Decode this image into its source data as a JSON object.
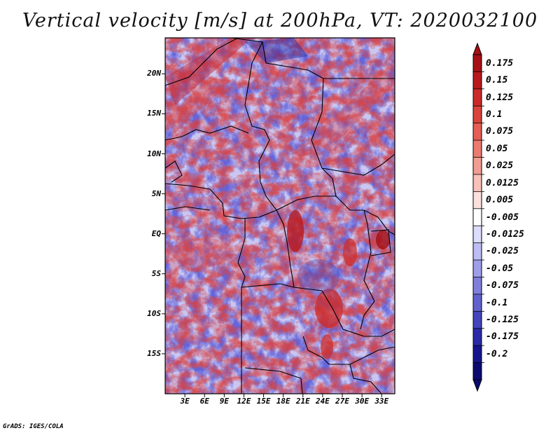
{
  "title": "Vertical velocity [m/s] at 200hPa, VT: 2020032100",
  "credit": "GrADS: IGES/COLA",
  "map": {
    "variable": "Vertical velocity",
    "units": "m/s",
    "level": "200hPa",
    "valid_time": "2020032100",
    "lat_range": [
      -20,
      24.5
    ],
    "lon_range": [
      0,
      35
    ],
    "lat_ticks": [
      {
        "value": 20,
        "label": "20N"
      },
      {
        "value": 15,
        "label": "15N"
      },
      {
        "value": 10,
        "label": "10N"
      },
      {
        "value": 5,
        "label": "5N"
      },
      {
        "value": 0,
        "label": "EQ"
      },
      {
        "value": -5,
        "label": "5S"
      },
      {
        "value": -10,
        "label": "10S"
      },
      {
        "value": -15,
        "label": "15S"
      }
    ],
    "lon_ticks": [
      {
        "value": 3,
        "label": "3E"
      },
      {
        "value": 6,
        "label": "6E"
      },
      {
        "value": 9,
        "label": "9E"
      },
      {
        "value": 12,
        "label": "12E"
      },
      {
        "value": 15,
        "label": "15E"
      },
      {
        "value": 18,
        "label": "18E"
      },
      {
        "value": 21,
        "label": "21E"
      },
      {
        "value": 24,
        "label": "24E"
      },
      {
        "value": 27,
        "label": "27E"
      },
      {
        "value": 30,
        "label": "30E"
      },
      {
        "value": 33,
        "label": "33E"
      }
    ]
  },
  "colorbar": {
    "labels": [
      "0.175",
      "0.15",
      "0.125",
      "0.1",
      "0.075",
      "0.05",
      "0.025",
      "0.0125",
      "0.005",
      "-0.005",
      "-0.0125",
      "-0.025",
      "-0.05",
      "-0.075",
      "-0.1",
      "-0.125",
      "-0.175",
      "-0.2"
    ],
    "colors": [
      "#a50f15",
      "#b8191e",
      "#cb2a2a",
      "#d9433d",
      "#e45e55",
      "#eb7b70",
      "#f29d93",
      "#f7c0b8",
      "#fbe0dc",
      "#ffffff",
      "#dcdcfb",
      "#bdbdf4",
      "#9e9ee9",
      "#7f7fdc",
      "#6262cd",
      "#4444bb",
      "#2a2aa6",
      "#15158c",
      "#0a0a70"
    ]
  }
}
